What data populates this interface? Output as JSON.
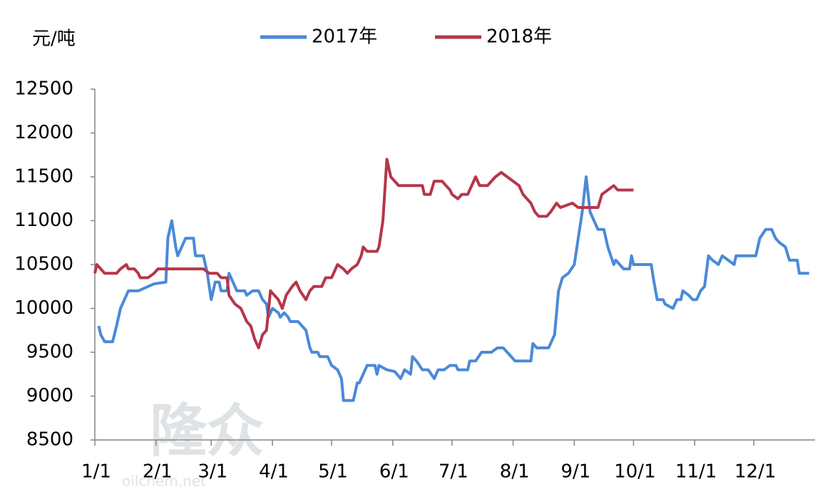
{
  "chart_data": {
    "type": "line",
    "y_label": "元/吨",
    "watermark": "隆众",
    "watermark_sub": "oilchem.net",
    "xlim": [
      0,
      365
    ],
    "xticks": [
      {
        "value": 0,
        "label": "1/1"
      },
      {
        "value": 31,
        "label": "2/1"
      },
      {
        "value": 59,
        "label": "3/1"
      },
      {
        "value": 90,
        "label": "4/1"
      },
      {
        "value": 120,
        "label": "5/1"
      },
      {
        "value": 151,
        "label": "6/1"
      },
      {
        "value": 181,
        "label": "7/1"
      },
      {
        "value": 212,
        "label": "8/1"
      },
      {
        "value": 243,
        "label": "9/1"
      },
      {
        "value": 273,
        "label": "10/1"
      },
      {
        "value": 304,
        "label": "11/1"
      },
      {
        "value": 334,
        "label": "12/1"
      }
    ],
    "ylim": [
      8500,
      12500
    ],
    "yticks": [
      8500,
      9000,
      9500,
      10000,
      10500,
      11000,
      11500,
      12000,
      12500
    ],
    "legend": "top",
    "series": [
      {
        "name": "2017年",
        "color": "#4a8ad8",
        "x": [
          2,
          3,
          5,
          9,
          11,
          13,
          15,
          17,
          22,
          30,
          36,
          37,
          39,
          41,
          42,
          44,
          46,
          50,
          51,
          55,
          57,
          59,
          61,
          63,
          64,
          67,
          68,
          70,
          72,
          76,
          77,
          80,
          83,
          85,
          87,
          88,
          90,
          93,
          94,
          96,
          98,
          99,
          103,
          105,
          107,
          109,
          110,
          113,
          114,
          118,
          120,
          123,
          125,
          126,
          131,
          133,
          134,
          136,
          138,
          142,
          143,
          144,
          148,
          152,
          155,
          157,
          160,
          161,
          163,
          166,
          169,
          172,
          174,
          177,
          180,
          183,
          184,
          189,
          190,
          193,
          196,
          201,
          204,
          207,
          209,
          211,
          213,
          221,
          222,
          224,
          230,
          233,
          235,
          237,
          240,
          243,
          245,
          247,
          249,
          251,
          253,
          255,
          258,
          260,
          263,
          264,
          266,
          268,
          271,
          272,
          273,
          282,
          283,
          285,
          288,
          289,
          293,
          295,
          297,
          298,
          301,
          303,
          305,
          307,
          309,
          311,
          313,
          316,
          318,
          321,
          324,
          325,
          335,
          337,
          340,
          343,
          345,
          347,
          350,
          352,
          356,
          357,
          362
        ],
        "values": [
          9800,
          9700,
          9620,
          9620,
          9800,
          10000,
          10100,
          10200,
          10200,
          10280,
          10300,
          10800,
          11000,
          10700,
          10600,
          10700,
          10800,
          10800,
          10600,
          10600,
          10400,
          10100,
          10300,
          10300,
          10200,
          10200,
          10400,
          10300,
          10200,
          10200,
          10150,
          10200,
          10200,
          10100,
          10050,
          9900,
          10000,
          9950,
          9900,
          9950,
          9900,
          9850,
          9850,
          9800,
          9750,
          9550,
          9500,
          9500,
          9450,
          9450,
          9350,
          9300,
          9200,
          8950,
          8950,
          9150,
          9150,
          9250,
          9350,
          9350,
          9250,
          9350,
          9300,
          9280,
          9200,
          9300,
          9250,
          9450,
          9400,
          9300,
          9300,
          9200,
          9300,
          9300,
          9350,
          9350,
          9300,
          9300,
          9400,
          9400,
          9500,
          9500,
          9550,
          9550,
          9500,
          9450,
          9400,
          9400,
          9600,
          9550,
          9550,
          9700,
          10200,
          10350,
          10400,
          10500,
          10800,
          11100,
          11500,
          11100,
          11000,
          10900,
          10900,
          10700,
          10500,
          10550,
          10500,
          10450,
          10450,
          10600,
          10500,
          10500,
          10350,
          10100,
          10100,
          10050,
          10000,
          10100,
          10100,
          10200,
          10150,
          10100,
          10100,
          10200,
          10250,
          10600,
          10550,
          10500,
          10600,
          10550,
          10500,
          10600,
          10600,
          10800,
          10900,
          10900,
          10800,
          10750,
          10700,
          10550,
          10550,
          10400,
          10400
        ]
      },
      {
        "name": "2018年",
        "color": "#b5364a",
        "x": [
          0,
          1,
          3,
          5,
          11,
          13,
          16,
          17,
          20,
          22,
          23,
          27,
          30,
          32,
          55,
          58,
          62,
          64,
          67,
          68,
          71,
          74,
          77,
          79,
          81,
          83,
          85,
          87,
          89,
          91,
          93,
          95,
          97,
          100,
          102,
          104,
          107,
          109,
          111,
          115,
          117,
          120,
          122,
          123,
          126,
          128,
          130,
          133,
          135,
          136,
          138,
          143,
          144,
          146,
          148,
          150,
          152,
          154,
          166,
          167,
          170,
          172,
          176,
          178,
          180,
          181,
          184,
          186,
          189,
          191,
          193,
          195,
          199,
          201,
          203,
          206,
          209,
          212,
          215,
          217,
          219,
          221,
          223,
          225,
          229,
          231,
          234,
          236,
          242,
          245,
          255,
          257,
          260,
          263,
          265,
          273
        ],
        "values": [
          10400,
          10500,
          10450,
          10400,
          10400,
          10450,
          10500,
          10450,
          10450,
          10400,
          10350,
          10350,
          10400,
          10450,
          10450,
          10400,
          10400,
          10350,
          10350,
          10150,
          10050,
          10000,
          9850,
          9800,
          9650,
          9550,
          9700,
          9750,
          10200,
          10150,
          10100,
          10000,
          10150,
          10250,
          10300,
          10200,
          10100,
          10200,
          10250,
          10250,
          10350,
          10350,
          10450,
          10500,
          10450,
          10400,
          10450,
          10500,
          10600,
          10700,
          10650,
          10650,
          10700,
          11000,
          11700,
          11500,
          11450,
          11400,
          11400,
          11300,
          11300,
          11450,
          11450,
          11400,
          11350,
          11300,
          11250,
          11300,
          11300,
          11400,
          11500,
          11400,
          11400,
          11450,
          11500,
          11550,
          11500,
          11450,
          11400,
          11300,
          11250,
          11200,
          11100,
          11050,
          11050,
          11100,
          11200,
          11150,
          11200,
          11150,
          11150,
          11300,
          11350,
          11400,
          11350,
          11350
        ]
      }
    ]
  }
}
